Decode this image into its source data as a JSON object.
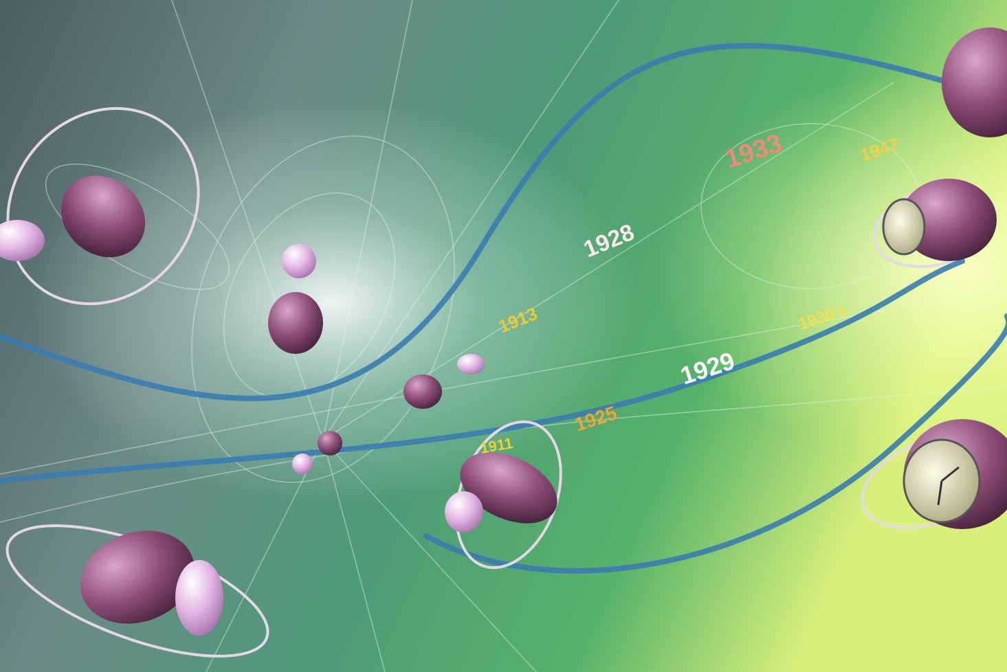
{
  "years": [
    "1933",
    "1947",
    "1928",
    "1913",
    "1930's",
    "1929",
    "1925",
    "1911"
  ]
}
